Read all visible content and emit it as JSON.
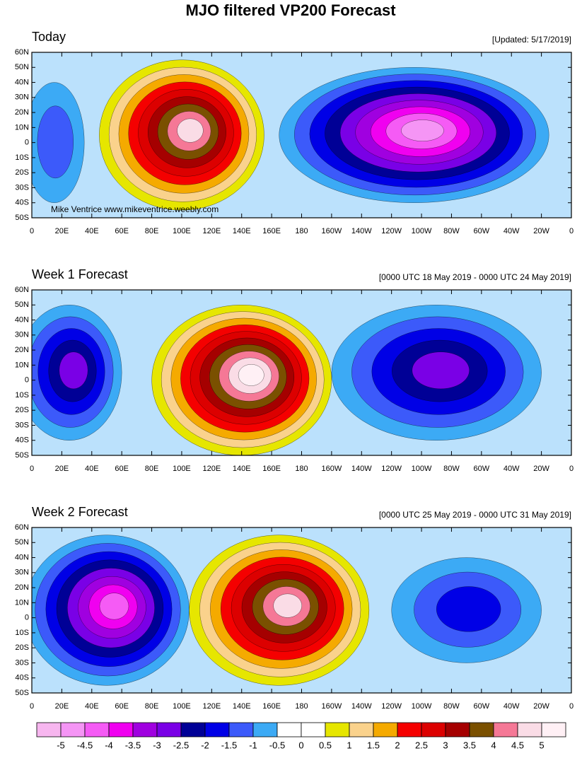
{
  "title": "MJO filtered VP200 Forecast",
  "panels": [
    {
      "title": "Today",
      "subtitle": "[Updated: 5/17/2019]",
      "watermark": "Mike Ventrice www.mikeventrice.weebly.com"
    },
    {
      "title": "Week 1 Forecast",
      "subtitle": "[0000 UTC 18 May 2019 - 0000 UTC 24 May 2019]"
    },
    {
      "title": "Week 2 Forecast",
      "subtitle": "[0000 UTC 25 May 2019 - 0000 UTC 31 May 2019]"
    }
  ],
  "lat_labels": [
    "60N",
    "50N",
    "40N",
    "30N",
    "20N",
    "10N",
    "0",
    "10S",
    "20S",
    "30S",
    "40S",
    "50S"
  ],
  "lon_labels": [
    "0",
    "20E",
    "40E",
    "60E",
    "80E",
    "100E",
    "120E",
    "140E",
    "160E",
    "180",
    "160W",
    "140W",
    "120W",
    "100W",
    "80W",
    "60W",
    "40W",
    "20W",
    "0"
  ],
  "colorbar": {
    "colors": [
      "#f7b6ef",
      "#f595f5",
      "#f55bf5",
      "#f000f0",
      "#a000e0",
      "#7a00e6",
      "#000096",
      "#0000e6",
      "#3c5afa",
      "#3caaf5",
      "#ffffff",
      "#ffffff",
      "#e6e600",
      "#fad28c",
      "#f5aa00",
      "#f50000",
      "#dc0000",
      "#a50000",
      "#7a5000",
      "#f57896",
      "#fadce6",
      "#fff0f5"
    ],
    "labels": [
      -5,
      -4.5,
      -4,
      -3.5,
      -3,
      -2.5,
      -2,
      -1.5,
      -1,
      -0.5,
      0,
      0.5,
      1,
      1.5,
      2,
      2.5,
      3,
      3.5,
      4,
      4.5,
      5
    ]
  }
}
